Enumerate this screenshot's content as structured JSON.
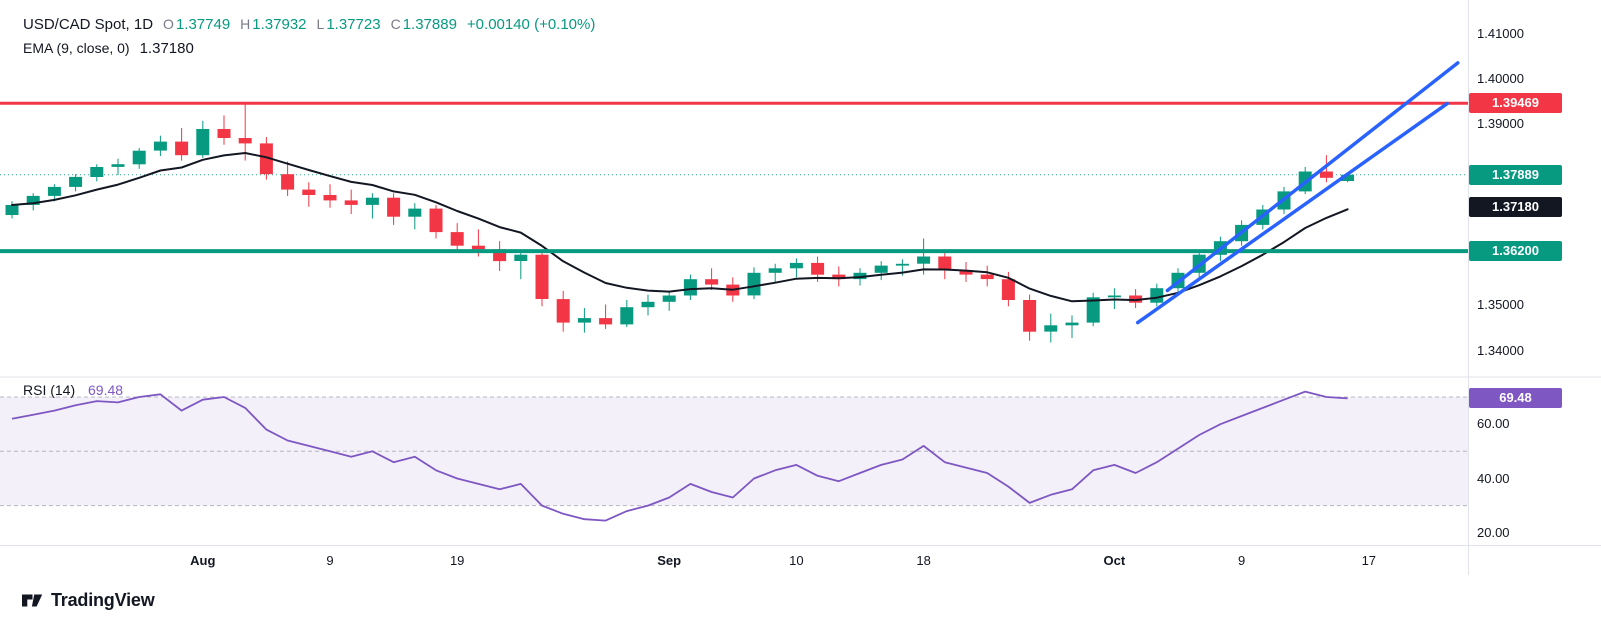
{
  "legend": {
    "title": "USD/CAD Spot, 1D",
    "o_key": "O",
    "o": "1.37749",
    "h_key": "H",
    "h": "1.37932",
    "l_key": "L",
    "l": "1.37723",
    "c_key": "C",
    "c": "1.37889",
    "change": "+0.00140 (+0.10%)",
    "ema_name": "EMA (9, close, 0)",
    "ema_value": "1.37180"
  },
  "rsi_legend": {
    "name": "RSI (14)",
    "value": "69.48"
  },
  "footer": {
    "brand": "TradingView"
  },
  "colors": {
    "up": "#089981",
    "down": "#F23645",
    "ema": "#131722",
    "rsi_line": "#7E57C2",
    "rsi_band": "rgba(126,87,194,0.09)",
    "channel": "#2962FF",
    "resistance": "#F23645",
    "support": "#089981",
    "last_price": "#089981",
    "axis_text": "#131722",
    "separator": "#e0e3eb"
  },
  "price_axis": {
    "labels": [
      {
        "text": "1.41000",
        "price": 1.41
      },
      {
        "text": "1.40000",
        "price": 1.4
      },
      {
        "text": "1.39000",
        "price": 1.39
      },
      {
        "text": "1.35000",
        "price": 1.35
      },
      {
        "text": "1.34000",
        "price": 1.34
      }
    ],
    "badges": [
      {
        "name": "resistance",
        "text": "1.39469",
        "price": 1.39469,
        "bg": "#F23645"
      },
      {
        "name": "last-price",
        "text": "1.37889",
        "price": 1.37889,
        "bg": "#089981"
      },
      {
        "name": "ema-value",
        "text": "1.37180",
        "price": 1.3718,
        "bg": "#131722"
      },
      {
        "name": "support",
        "text": "1.36200",
        "price": 1.362,
        "bg": "#089981"
      }
    ]
  },
  "rsi_axis": {
    "labels": [
      {
        "text": "60.00",
        "value": 60
      },
      {
        "text": "40.00",
        "value": 40
      },
      {
        "text": "20.00",
        "value": 20
      }
    ],
    "badge": {
      "name": "rsi-value",
      "text": "69.48",
      "value": 69.48,
      "bg": "#7E57C2"
    }
  },
  "chart_data": {
    "type": "candlestick",
    "symbol": "USD/CAD Spot",
    "interval": "1D",
    "y_axis": {
      "min": 1.3344,
      "max": 1.4175
    },
    "rsi_pane": {
      "min": 15.5,
      "max": 77
    },
    "x_ticks": [
      {
        "label": "Aug",
        "i": 9
      },
      {
        "label": "9",
        "i": 15
      },
      {
        "label": "19",
        "i": 21
      },
      {
        "label": "Sep",
        "i": 31
      },
      {
        "label": "10",
        "i": 37
      },
      {
        "label": "18",
        "i": 43
      },
      {
        "label": "Oct",
        "i": 52
      },
      {
        "label": "9",
        "i": 58
      },
      {
        "label": "17",
        "i": 64
      }
    ],
    "candles": [
      {
        "d": "Jul 19",
        "o": 1.37,
        "h": 1.373,
        "l": 1.3692,
        "c": 1.3722
      },
      {
        "d": "Jul 22",
        "o": 1.3722,
        "h": 1.3748,
        "l": 1.371,
        "c": 1.3742
      },
      {
        "d": "Jul 23",
        "o": 1.3742,
        "h": 1.3768,
        "l": 1.373,
        "c": 1.3762
      },
      {
        "d": "Jul 24",
        "o": 1.3762,
        "h": 1.379,
        "l": 1.3752,
        "c": 1.3784
      },
      {
        "d": "Jul 25",
        "o": 1.3784,
        "h": 1.3812,
        "l": 1.3774,
        "c": 1.3806
      },
      {
        "d": "Jul 26",
        "o": 1.3806,
        "h": 1.3824,
        "l": 1.3788,
        "c": 1.3812
      },
      {
        "d": "Jul 29",
        "o": 1.3812,
        "h": 1.3848,
        "l": 1.3802,
        "c": 1.3842
      },
      {
        "d": "Jul 30",
        "o": 1.3842,
        "h": 1.3875,
        "l": 1.383,
        "c": 1.3862
      },
      {
        "d": "Jul 31",
        "o": 1.3862,
        "h": 1.3892,
        "l": 1.382,
        "c": 1.3832
      },
      {
        "d": "Aug 1",
        "o": 1.3832,
        "h": 1.3908,
        "l": 1.3826,
        "c": 1.389
      },
      {
        "d": "Aug 2",
        "o": 1.389,
        "h": 1.392,
        "l": 1.3855,
        "c": 1.387
      },
      {
        "d": "Aug 5",
        "o": 1.387,
        "h": 1.3946,
        "l": 1.382,
        "c": 1.3858
      },
      {
        "d": "Aug 6",
        "o": 1.3858,
        "h": 1.3872,
        "l": 1.3778,
        "c": 1.379
      },
      {
        "d": "Aug 7",
        "o": 1.379,
        "h": 1.3818,
        "l": 1.3742,
        "c": 1.3756
      },
      {
        "d": "Aug 8",
        "o": 1.3756,
        "h": 1.3772,
        "l": 1.3718,
        "c": 1.3744
      },
      {
        "d": "Aug 9",
        "o": 1.3744,
        "h": 1.3768,
        "l": 1.3716,
        "c": 1.3732
      },
      {
        "d": "Aug 12",
        "o": 1.3732,
        "h": 1.3756,
        "l": 1.3702,
        "c": 1.3722
      },
      {
        "d": "Aug 13",
        "o": 1.3722,
        "h": 1.3748,
        "l": 1.3692,
        "c": 1.3738
      },
      {
        "d": "Aug 14",
        "o": 1.3738,
        "h": 1.3748,
        "l": 1.3678,
        "c": 1.3696
      },
      {
        "d": "Aug 15",
        "o": 1.3696,
        "h": 1.3726,
        "l": 1.3668,
        "c": 1.3714
      },
      {
        "d": "Aug 16",
        "o": 1.3714,
        "h": 1.3722,
        "l": 1.3648,
        "c": 1.3662
      },
      {
        "d": "Aug 19",
        "o": 1.3662,
        "h": 1.3682,
        "l": 1.3618,
        "c": 1.3632
      },
      {
        "d": "Aug 20",
        "o": 1.3632,
        "h": 1.3668,
        "l": 1.3608,
        "c": 1.3624
      },
      {
        "d": "Aug 21",
        "o": 1.3624,
        "h": 1.3642,
        "l": 1.3576,
        "c": 1.3598
      },
      {
        "d": "Aug 22",
        "o": 1.3598,
        "h": 1.3622,
        "l": 1.3558,
        "c": 1.3612
      },
      {
        "d": "Aug 23",
        "o": 1.3612,
        "h": 1.3618,
        "l": 1.3498,
        "c": 1.3514
      },
      {
        "d": "Aug 26",
        "o": 1.3514,
        "h": 1.3532,
        "l": 1.3442,
        "c": 1.3462
      },
      {
        "d": "Aug 27",
        "o": 1.3462,
        "h": 1.3494,
        "l": 1.344,
        "c": 1.3472
      },
      {
        "d": "Aug 28",
        "o": 1.3472,
        "h": 1.3502,
        "l": 1.3448,
        "c": 1.3458
      },
      {
        "d": "Aug 29",
        "o": 1.3458,
        "h": 1.3512,
        "l": 1.3452,
        "c": 1.3496
      },
      {
        "d": "Aug 30",
        "o": 1.3496,
        "h": 1.3524,
        "l": 1.3478,
        "c": 1.3508
      },
      {
        "d": "Sep 2",
        "o": 1.3508,
        "h": 1.3532,
        "l": 1.3488,
        "c": 1.3522
      },
      {
        "d": "Sep 3",
        "o": 1.3522,
        "h": 1.3568,
        "l": 1.3512,
        "c": 1.3558
      },
      {
        "d": "Sep 4",
        "o": 1.3558,
        "h": 1.3582,
        "l": 1.3534,
        "c": 1.3546
      },
      {
        "d": "Sep 5",
        "o": 1.3546,
        "h": 1.3562,
        "l": 1.3508,
        "c": 1.3522
      },
      {
        "d": "Sep 6",
        "o": 1.3522,
        "h": 1.3584,
        "l": 1.3514,
        "c": 1.3572
      },
      {
        "d": "Sep 9",
        "o": 1.3572,
        "h": 1.3592,
        "l": 1.3552,
        "c": 1.3582
      },
      {
        "d": "Sep 10",
        "o": 1.3582,
        "h": 1.3604,
        "l": 1.3562,
        "c": 1.3594
      },
      {
        "d": "Sep 11",
        "o": 1.3594,
        "h": 1.3608,
        "l": 1.3552,
        "c": 1.3568
      },
      {
        "d": "Sep 12",
        "o": 1.3568,
        "h": 1.3586,
        "l": 1.3542,
        "c": 1.3558
      },
      {
        "d": "Sep 13",
        "o": 1.3558,
        "h": 1.3582,
        "l": 1.3544,
        "c": 1.3572
      },
      {
        "d": "Sep 16",
        "o": 1.3572,
        "h": 1.3598,
        "l": 1.3556,
        "c": 1.3588
      },
      {
        "d": "Sep 17",
        "o": 1.3588,
        "h": 1.3602,
        "l": 1.3566,
        "c": 1.3592
      },
      {
        "d": "Sep 18",
        "o": 1.3592,
        "h": 1.3648,
        "l": 1.3568,
        "c": 1.3608
      },
      {
        "d": "Sep 19",
        "o": 1.3608,
        "h": 1.3622,
        "l": 1.3558,
        "c": 1.3578
      },
      {
        "d": "Sep 20",
        "o": 1.3578,
        "h": 1.3596,
        "l": 1.3552,
        "c": 1.3568
      },
      {
        "d": "Sep 23",
        "o": 1.3568,
        "h": 1.3588,
        "l": 1.3542,
        "c": 1.3558
      },
      {
        "d": "Sep 24",
        "o": 1.3558,
        "h": 1.3574,
        "l": 1.3498,
        "c": 1.3512
      },
      {
        "d": "Sep 25",
        "o": 1.3512,
        "h": 1.3524,
        "l": 1.3422,
        "c": 1.3442
      },
      {
        "d": "Sep 26",
        "o": 1.3442,
        "h": 1.3482,
        "l": 1.3418,
        "c": 1.3456
      },
      {
        "d": "Sep 27",
        "o": 1.3456,
        "h": 1.3478,
        "l": 1.3428,
        "c": 1.3462
      },
      {
        "d": "Sep 30",
        "o": 1.3462,
        "h": 1.3528,
        "l": 1.3454,
        "c": 1.3518
      },
      {
        "d": "Oct 1",
        "o": 1.3518,
        "h": 1.3538,
        "l": 1.3492,
        "c": 1.3522
      },
      {
        "d": "Oct 2",
        "o": 1.3522,
        "h": 1.3536,
        "l": 1.3494,
        "c": 1.3506
      },
      {
        "d": "Oct 3",
        "o": 1.3506,
        "h": 1.3548,
        "l": 1.3498,
        "c": 1.3538
      },
      {
        "d": "Oct 4",
        "o": 1.3538,
        "h": 1.3582,
        "l": 1.3528,
        "c": 1.3572
      },
      {
        "d": "Oct 7",
        "o": 1.3572,
        "h": 1.3622,
        "l": 1.3562,
        "c": 1.3612
      },
      {
        "d": "Oct 8",
        "o": 1.3612,
        "h": 1.3652,
        "l": 1.3598,
        "c": 1.3642
      },
      {
        "d": "Oct 9",
        "o": 1.3642,
        "h": 1.3688,
        "l": 1.3632,
        "c": 1.3678
      },
      {
        "d": "Oct 10",
        "o": 1.3678,
        "h": 1.3722,
        "l": 1.3668,
        "c": 1.3712
      },
      {
        "d": "Oct 11",
        "o": 1.3712,
        "h": 1.3762,
        "l": 1.3702,
        "c": 1.3752
      },
      {
        "d": "Oct 14",
        "o": 1.3752,
        "h": 1.3806,
        "l": 1.3746,
        "c": 1.3796
      },
      {
        "d": "Oct 15",
        "o": 1.3796,
        "h": 1.3832,
        "l": 1.3772,
        "c": 1.3782
      },
      {
        "d": "Oct 16",
        "o": 1.37749,
        "h": 1.37932,
        "l": 1.37723,
        "c": 1.37889
      }
    ],
    "overlays": {
      "ema": {
        "period": 9,
        "source": "close",
        "offset": 0,
        "last_value": 1.3718
      },
      "last_price": {
        "price": 1.37889,
        "label": "1.37889",
        "color": "#089981"
      },
      "levels": [
        {
          "name": "resistance",
          "price": 1.39469,
          "label": "1.39469",
          "color": "#F23645",
          "width": 3
        },
        {
          "name": "support",
          "price": 1.362,
          "label": "1.36200",
          "color": "#089981",
          "width": 4
        }
      ],
      "channel": {
        "color": "#2962FF",
        "lines": [
          {
            "i1": 53.1,
            "p1": 1.3462,
            "i2": 67.7,
            "p2": 1.3946
          },
          {
            "i1": 54.5,
            "p1": 1.3533,
            "i2": 68.2,
            "p2": 1.4036
          }
        ]
      }
    },
    "rsi": {
      "period": 14,
      "last_value": 69.48,
      "guides": [
        70,
        50,
        30
      ],
      "values": [
        62,
        63.5,
        65,
        67,
        68.5,
        68,
        70,
        71,
        65,
        69,
        70,
        66,
        58,
        54,
        52,
        50,
        48,
        50,
        46,
        48,
        43,
        40,
        38,
        36,
        38,
        30,
        27,
        25,
        24.5,
        28,
        30,
        33,
        38,
        35,
        33,
        40,
        43,
        45,
        41,
        39,
        42,
        45,
        47,
        52,
        46,
        44,
        42,
        37,
        31,
        34,
        36,
        43,
        45,
        42,
        46,
        51,
        56,
        60,
        63,
        66,
        69,
        72,
        70,
        69.48
      ]
    }
  }
}
